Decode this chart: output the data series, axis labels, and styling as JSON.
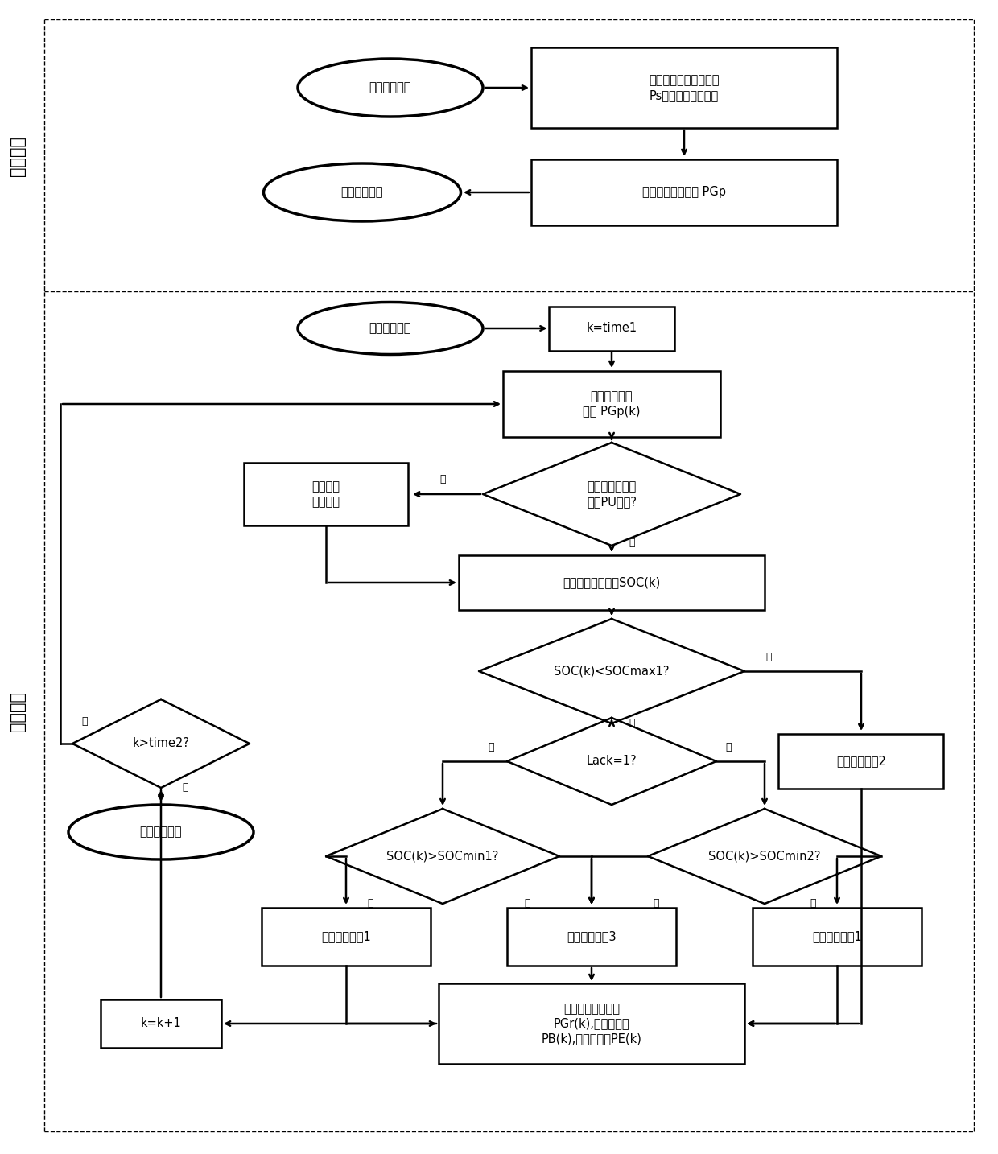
{
  "fig_width": 12.4,
  "fig_height": 14.34,
  "dpi": 100,
  "lw": 1.8,
  "lw_oval": 2.5,
  "fs_main": 10.5,
  "fs_small": 9,
  "fs_label": 15,
  "fs_annot": 9,
  "section1_label": "日前调度",
  "section2_label": "实时调度",
  "box1_text": "读取光伏短期预测功率\nPs与次日的天气类型",
  "oval1_text": "日前调度开始",
  "box2_text": "计算光伏计划出力 PGp",
  "oval2_text": "日前调度结束",
  "oval3_text": "实时调度开始",
  "box3_text": "k=time1",
  "box4_text": "读取光伏计划\n出力 PGp(k)",
  "diamond1_text": "光伏超短期预测\n功率PU更新?",
  "box5_text": "光伏计划\n出力修正",
  "box6_text": "读取电池荷电状态SOC(k)",
  "diamond2_text": "k>time2?",
  "oval4_text": "实时调度结束",
  "diamond3_text": "SOC(k)<SOCmax1?",
  "box7_text": "实时调度方案2",
  "diamond4_text": "Lack=1?",
  "diamond5_text": "SOC(k)>SOCmin1?",
  "diamond6_text": "SOC(k)>SOCmin2?",
  "box8_text": "实时调度方案1",
  "box9_text": "实时调度方案3",
  "box10_text": "实时调度方案1",
  "box11_text": "输出光伏实际出力\nPGr(k),蓄电池功率\nPB(k),电解槽功率PE(k)",
  "box12_text": "k=k+1"
}
